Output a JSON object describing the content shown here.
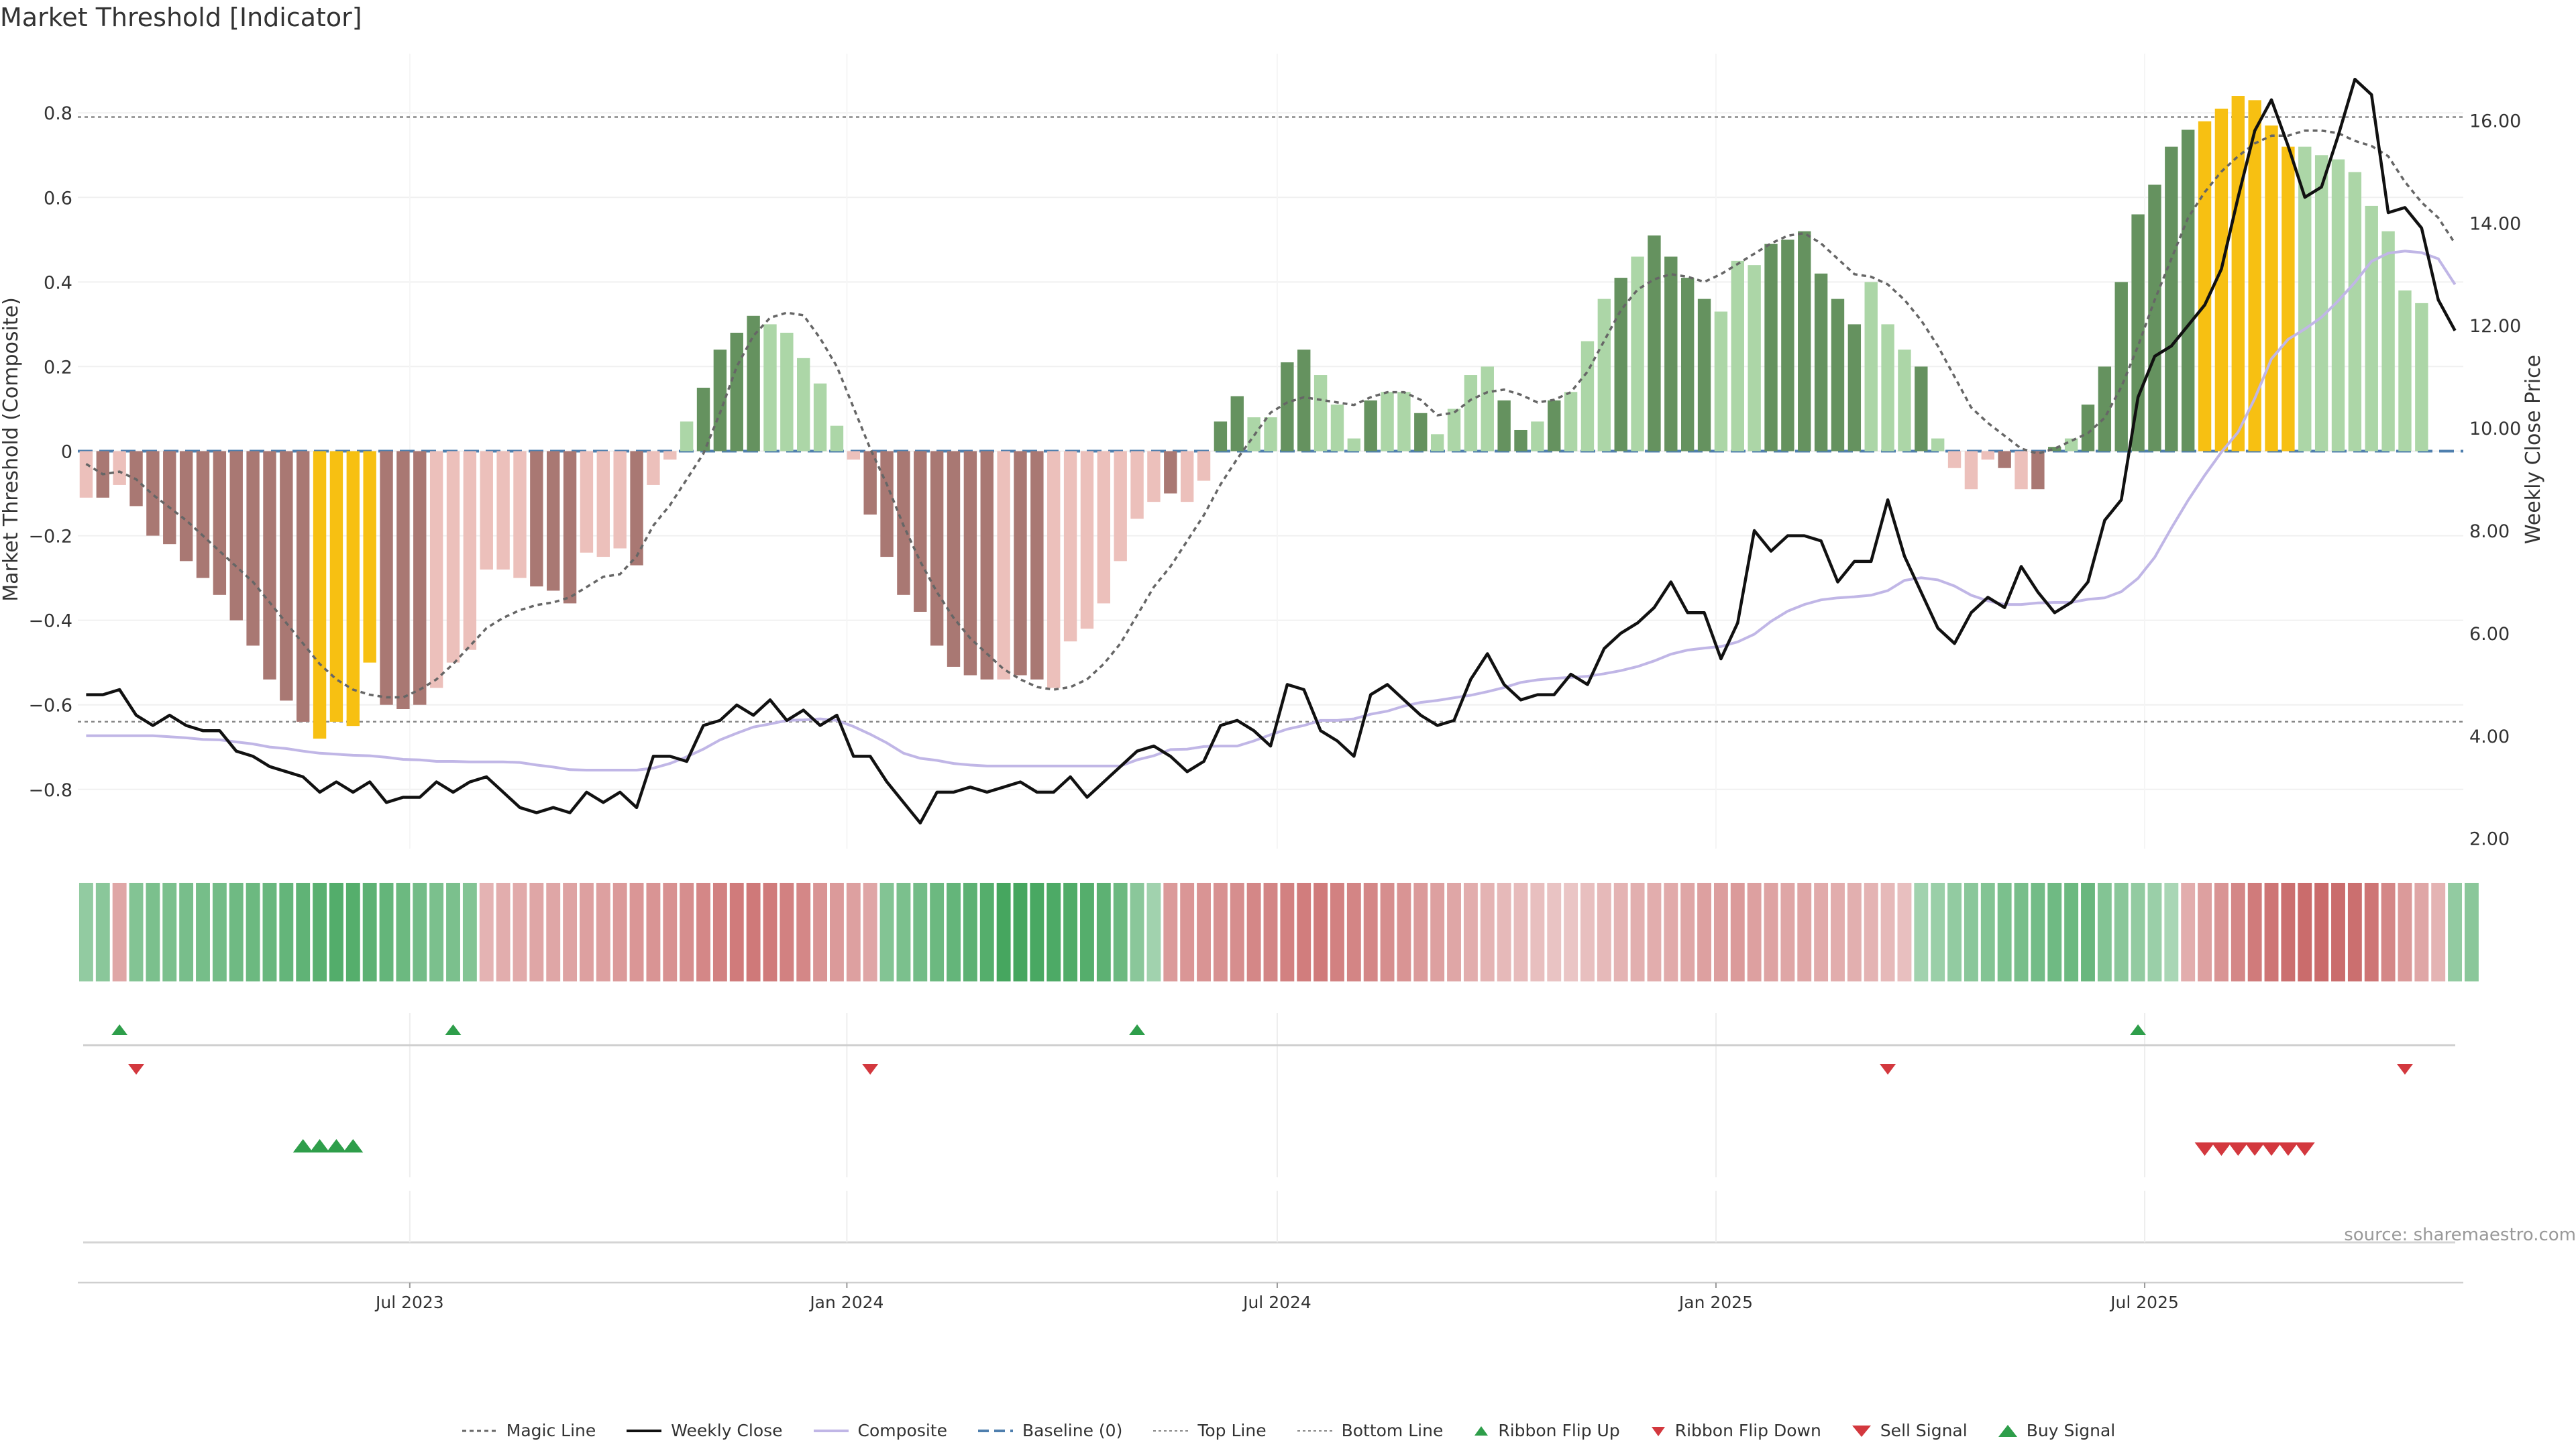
{
  "title": "Market Threshold [Indicator]",
  "source": "source: sharemaestro.com",
  "legend": {
    "magic": "Magic Line",
    "weekly": "Weekly Close",
    "composite": "Composite",
    "baseline": "Baseline (0)",
    "top": "Top Line",
    "bottom": "Bottom Line",
    "flip_up": "Ribbon Flip Up",
    "flip_down": "Ribbon Flip Down",
    "sell": "Sell Signal",
    "buy": "Buy Signal"
  },
  "colors": {
    "neg_dark": "#a97873",
    "neg_light": "#ecc0bb",
    "pos_dark": "#65925f",
    "pos_light": "#acd6a7",
    "extreme": "#f7c012",
    "weekly": "#111111",
    "composite": "#c0b6e6",
    "magic": "#666666",
    "baseline": "#4f7fae",
    "flip_up": "#2e9e4a",
    "flip_down": "#d3383e"
  },
  "chart_data": {
    "type": "bar",
    "title": "Market Threshold [Indicator]",
    "ylabel": "Market Threshold (Composite)",
    "y2label": "Weekly Close Price",
    "ylim": [
      -0.94,
      0.94
    ],
    "y2lim": [
      1.8,
      17.3
    ],
    "yticks": [
      -0.8,
      -0.6,
      -0.4,
      -0.2,
      0,
      0.2,
      0.4,
      0.6,
      0.8
    ],
    "ytick_labels": [
      "−0.8",
      "−0.6",
      "−0.4",
      "−0.2",
      "0",
      "0.2",
      "0.4",
      "0.6",
      "0.8"
    ],
    "y2ticks": [
      2,
      4,
      6,
      8,
      10,
      12,
      14,
      16
    ],
    "y2tick_labels": [
      "2.00",
      "4.00",
      "6.00",
      "8.00",
      "10.00",
      "12.00",
      "14.00",
      "16.00"
    ],
    "top_line": 0.79,
    "bottom_line": -0.64,
    "x_start": "2023-02-11",
    "week_count": 143,
    "xticks": [
      {
        "label": "Jul 2023",
        "week": 19.4
      },
      {
        "label": "Jan 2024",
        "week": 45.6
      },
      {
        "label": "Jul 2024",
        "week": 71.4
      },
      {
        "label": "Jan 2025",
        "week": 97.7
      },
      {
        "label": "Jul 2025",
        "week": 123.4
      }
    ],
    "composite": [
      -0.11,
      -0.11,
      -0.08,
      -0.13,
      -0.2,
      -0.22,
      -0.26,
      -0.3,
      -0.34,
      -0.4,
      -0.46,
      -0.54,
      -0.59,
      -0.64,
      -0.68,
      -0.64,
      -0.65,
      -0.5,
      -0.6,
      -0.61,
      -0.6,
      -0.56,
      -0.5,
      -0.47,
      -0.28,
      -0.28,
      -0.3,
      -0.32,
      -0.33,
      -0.36,
      -0.24,
      -0.25,
      -0.23,
      -0.27,
      -0.08,
      -0.02,
      0.07,
      0.15,
      0.24,
      0.28,
      0.32,
      0.3,
      0.28,
      0.22,
      0.16,
      0.06,
      -0.02,
      -0.15,
      -0.25,
      -0.34,
      -0.38,
      -0.46,
      -0.51,
      -0.53,
      -0.54,
      -0.54,
      -0.53,
      -0.54,
      -0.56,
      -0.45,
      -0.42,
      -0.36,
      -0.26,
      -0.16,
      -0.12,
      -0.1,
      -0.12,
      -0.07,
      0.07,
      0.13,
      0.08,
      0.08,
      0.21,
      0.24,
      0.18,
      0.11,
      0.03,
      0.12,
      0.14,
      0.14,
      0.09,
      0.04,
      0.1,
      0.18,
      0.2,
      0.12,
      0.05,
      0.07,
      0.12,
      0.14,
      0.26,
      0.36,
      0.41,
      0.46,
      0.51,
      0.46,
      0.41,
      0.36,
      0.33,
      0.45,
      0.44,
      0.49,
      0.5,
      0.52,
      0.42,
      0.36,
      0.3,
      0.4,
      0.3,
      0.24,
      0.2,
      0.03,
      -0.04,
      -0.09,
      -0.02,
      -0.04,
      -0.09,
      -0.09,
      0.01,
      0.03,
      0.11,
      0.2,
      0.4,
      0.56,
      0.63,
      0.72,
      0.76,
      0.78,
      0.81,
      0.84,
      0.83,
      0.77,
      0.72,
      0.72,
      0.7,
      0.69,
      0.66,
      0.58,
      0.52,
      0.38,
      0.35
    ],
    "shade": [
      "L",
      "D",
      "L",
      "D",
      "D",
      "D",
      "D",
      "D",
      "D",
      "D",
      "D",
      "D",
      "D",
      "D",
      "E",
      "E",
      "E",
      "E",
      "D",
      "D",
      "D",
      "L",
      "L",
      "L",
      "L",
      "L",
      "L",
      "D",
      "D",
      "D",
      "L",
      "L",
      "L",
      "D",
      "L",
      "L",
      "L",
      "D",
      "D",
      "D",
      "D",
      "L",
      "L",
      "L",
      "L",
      "L",
      "L",
      "D",
      "D",
      "D",
      "D",
      "D",
      "D",
      "D",
      "D",
      "L",
      "D",
      "D",
      "L",
      "L",
      "L",
      "L",
      "L",
      "L",
      "L",
      "D",
      "L",
      "L",
      "D",
      "D",
      "L",
      "L",
      "D",
      "D",
      "L",
      "L",
      "L",
      "D",
      "L",
      "L",
      "D",
      "L",
      "L",
      "L",
      "L",
      "D",
      "D",
      "L",
      "D",
      "L",
      "L",
      "L",
      "D",
      "L",
      "D",
      "D",
      "D",
      "D",
      "L",
      "L",
      "L",
      "D",
      "D",
      "D",
      "D",
      "D",
      "D",
      "L",
      "L",
      "L",
      "D",
      "L",
      "L",
      "L",
      "L",
      "D",
      "L",
      "D",
      "D",
      "L",
      "D",
      "D",
      "D",
      "D",
      "D",
      "D",
      "D",
      "E",
      "E",
      "E",
      "E",
      "E",
      "E",
      "L",
      "L",
      "L",
      "L",
      "L",
      "L",
      "L",
      "L",
      "L",
      "L"
    ],
    "weekly_close": [
      4.8,
      4.8,
      4.9,
      4.4,
      4.2,
      4.4,
      4.2,
      4.1,
      4.1,
      3.7,
      3.6,
      3.4,
      3.3,
      3.2,
      2.9,
      3.1,
      2.9,
      3.1,
      2.7,
      2.8,
      2.8,
      3.1,
      2.9,
      3.1,
      3.2,
      2.9,
      2.6,
      2.5,
      2.6,
      2.5,
      2.9,
      2.7,
      2.9,
      2.6,
      3.6,
      3.6,
      3.5,
      4.2,
      4.3,
      4.6,
      4.4,
      4.7,
      4.3,
      4.5,
      4.2,
      4.4,
      3.6,
      3.6,
      3.1,
      2.7,
      2.3,
      2.9,
      2.9,
      3.0,
      2.9,
      3.0,
      3.1,
      2.9,
      2.9,
      3.2,
      2.8,
      3.1,
      3.4,
      3.7,
      3.8,
      3.6,
      3.3,
      3.5,
      4.2,
      4.3,
      4.1,
      3.8,
      5.0,
      4.9,
      4.1,
      3.9,
      3.6,
      4.8,
      5.0,
      4.7,
      4.4,
      4.2,
      4.3,
      5.1,
      5.6,
      5.0,
      4.7,
      4.8,
      4.8,
      5.2,
      5.0,
      5.7,
      6.0,
      6.2,
      6.5,
      7.0,
      6.4,
      6.4,
      5.5,
      6.2,
      8.0,
      7.6,
      7.9,
      7.9,
      7.8,
      7.0,
      7.4,
      7.4,
      8.6,
      7.5,
      6.8,
      6.1,
      5.8,
      6.4,
      6.7,
      6.5,
      7.3,
      6.8,
      6.4,
      6.6,
      7.0,
      8.2,
      8.6,
      10.6,
      11.4,
      11.6,
      12.0,
      12.4,
      13.1,
      14.5,
      15.8,
      16.4,
      15.5,
      14.5,
      14.7,
      15.7,
      16.8,
      16.5,
      14.2,
      14.3,
      13.9,
      12.5,
      11.9
    ],
    "composite_line": [
      4.0,
      4.0,
      4.0,
      4.0,
      4.0,
      3.98,
      3.96,
      3.93,
      3.92,
      3.88,
      3.84,
      3.78,
      3.75,
      3.7,
      3.66,
      3.64,
      3.62,
      3.61,
      3.58,
      3.54,
      3.53,
      3.5,
      3.5,
      3.49,
      3.49,
      3.49,
      3.48,
      3.43,
      3.39,
      3.34,
      3.33,
      3.33,
      3.33,
      3.33,
      3.37,
      3.46,
      3.59,
      3.74,
      3.92,
      4.05,
      4.17,
      4.23,
      4.3,
      4.31,
      4.33,
      4.3,
      4.18,
      4.03,
      3.86,
      3.66,
      3.56,
      3.52,
      3.46,
      3.43,
      3.41,
      3.41,
      3.41,
      3.41,
      3.41,
      3.41,
      3.41,
      3.41,
      3.41,
      3.53,
      3.61,
      3.73,
      3.74,
      3.79,
      3.8,
      3.8,
      3.9,
      4.02,
      4.13,
      4.2,
      4.3,
      4.3,
      4.33,
      4.42,
      4.48,
      4.58,
      4.65,
      4.69,
      4.74,
      4.79,
      4.86,
      4.94,
      5.04,
      5.09,
      5.12,
      5.14,
      5.16,
      5.21,
      5.27,
      5.35,
      5.46,
      5.59,
      5.67,
      5.71,
      5.74,
      5.83,
      5.98,
      6.23,
      6.43,
      6.56,
      6.65,
      6.69,
      6.71,
      6.74,
      6.83,
      7.03,
      7.08,
      7.04,
      6.92,
      6.74,
      6.63,
      6.56,
      6.56,
      6.59,
      6.6,
      6.6,
      6.66,
      6.69,
      6.81,
      7.07,
      7.48,
      8.05,
      8.59,
      9.08,
      9.53,
      9.92,
      10.58,
      11.35,
      11.73,
      11.93,
      12.16,
      12.48,
      12.84,
      13.25,
      13.41,
      13.45,
      13.42,
      13.3,
      12.8
    ],
    "magic_line": [
      9.3,
      9.1,
      9.15,
      9.0,
      8.7,
      8.45,
      8.2,
      7.9,
      7.6,
      7.3,
      7.0,
      6.6,
      6.2,
      5.8,
      5.4,
      5.1,
      4.9,
      4.8,
      4.75,
      4.75,
      4.9,
      5.1,
      5.4,
      5.75,
      6.1,
      6.3,
      6.45,
      6.55,
      6.6,
      6.7,
      6.9,
      7.1,
      7.15,
      7.5,
      8.1,
      8.5,
      9.0,
      9.5,
      10.3,
      11.2,
      11.8,
      12.15,
      12.25,
      12.2,
      11.75,
      11.2,
      10.4,
      9.6,
      8.9,
      8.1,
      7.4,
      6.8,
      6.3,
      5.9,
      5.6,
      5.3,
      5.1,
      4.95,
      4.9,
      4.95,
      5.1,
      5.4,
      5.8,
      6.35,
      6.9,
      7.3,
      7.8,
      8.3,
      8.9,
      9.4,
      9.85,
      10.3,
      10.5,
      10.6,
      10.55,
      10.5,
      10.45,
      10.6,
      10.7,
      10.7,
      10.55,
      10.25,
      10.3,
      10.55,
      10.7,
      10.75,
      10.65,
      10.5,
      10.55,
      10.7,
      11.1,
      11.7,
      12.3,
      12.7,
      12.9,
      13.0,
      12.95,
      12.85,
      13.0,
      13.2,
      13.4,
      13.6,
      13.75,
      13.8,
      13.6,
      13.3,
      13.0,
      12.95,
      12.8,
      12.5,
      12.1,
      11.6,
      11.0,
      10.4,
      10.1,
      9.85,
      9.6,
      9.5,
      9.6,
      9.75,
      9.9,
      10.2,
      10.8,
      11.6,
      12.5,
      13.3,
      14.1,
      14.6,
      15.0,
      15.3,
      15.55,
      15.7,
      15.7,
      15.8,
      15.8,
      15.75,
      15.6,
      15.5,
      15.3,
      14.8,
      14.4,
      14.1,
      13.6
    ]
  },
  "ribbon": [
    0.45,
    0.5,
    -0.45,
    0.55,
    0.6,
    0.6,
    0.62,
    0.63,
    0.65,
    0.68,
    0.7,
    0.72,
    0.75,
    0.78,
    0.82,
    0.86,
    0.85,
    0.8,
    0.75,
    0.7,
    0.65,
    0.6,
    0.6,
    0.55,
    -0.35,
    -0.4,
    -0.42,
    -0.45,
    -0.45,
    -0.48,
    -0.5,
    -0.5,
    -0.55,
    -0.58,
    -0.6,
    -0.62,
    -0.65,
    -0.7,
    -0.75,
    -0.8,
    -0.82,
    -0.8,
    -0.75,
    -0.7,
    -0.6,
    -0.55,
    -0.5,
    -0.45,
    0.55,
    0.6,
    0.65,
    0.7,
    0.75,
    0.8,
    0.85,
    0.95,
    0.95,
    0.93,
    0.9,
    0.88,
    0.85,
    0.8,
    0.7,
    0.5,
    0.35,
    -0.55,
    -0.58,
    -0.6,
    -0.62,
    -0.65,
    -0.7,
    -0.72,
    -0.75,
    -0.78,
    -0.8,
    -0.75,
    -0.72,
    -0.7,
    -0.65,
    -0.6,
    -0.55,
    -0.5,
    -0.45,
    -0.4,
    -0.35,
    -0.3,
    -0.28,
    -0.25,
    -0.22,
    -0.2,
    -0.25,
    -0.3,
    -0.35,
    -0.38,
    -0.4,
    -0.42,
    -0.45,
    -0.5,
    -0.52,
    -0.55,
    -0.5,
    -0.48,
    -0.45,
    -0.45,
    -0.42,
    -0.4,
    -0.38,
    -0.35,
    -0.3,
    -0.25,
    0.35,
    0.4,
    0.45,
    0.5,
    0.55,
    0.6,
    0.62,
    0.65,
    0.68,
    0.7,
    0.72,
    0.55,
    0.5,
    0.45,
    0.4,
    0.3,
    -0.4,
    -0.5,
    -0.6,
    -0.7,
    -0.8,
    -0.85,
    -0.9,
    -0.92,
    -0.93,
    -0.92,
    -0.9,
    -0.85,
    -0.7,
    -0.55,
    -0.45,
    -0.35,
    0.45,
    0.5
  ],
  "signals": {
    "flip_up": [
      2,
      22,
      63,
      123
    ],
    "flip_down": [
      3,
      47,
      108,
      139
    ],
    "buy": [
      13,
      14,
      15,
      16
    ],
    "sell": [
      127,
      128,
      129,
      130,
      131,
      132,
      133
    ]
  }
}
